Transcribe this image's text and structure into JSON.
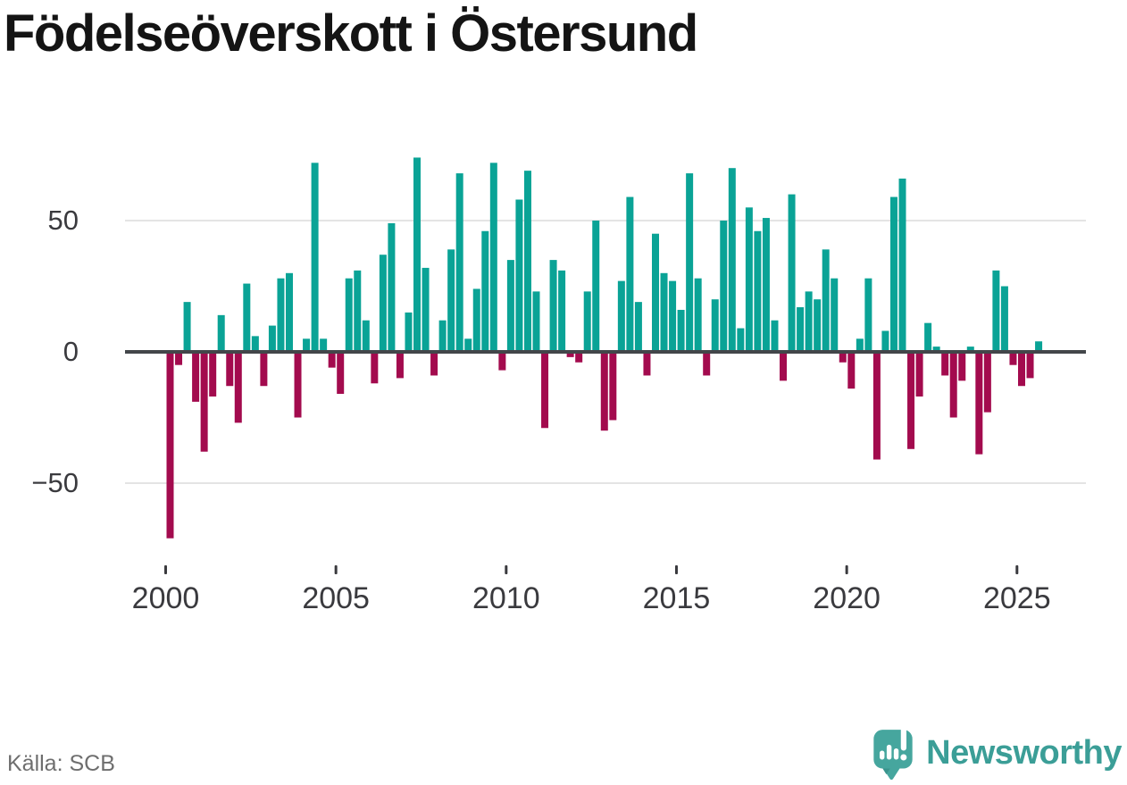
{
  "title": "Födelseöverskott i Östersund",
  "source": "Källa: SCB",
  "brand": {
    "name": "Newsworthy",
    "icon": "newsworthy-speech-bubble-chart-icon"
  },
  "chart_data": {
    "type": "bar",
    "title": "Födelseöverskott i Östersund",
    "xlabel": "",
    "ylabel": "",
    "frequency": "quarterly",
    "start_quarter": "2000Q1",
    "end_quarter": "2025Q3",
    "ylim": [
      -80,
      80
    ],
    "grid": "horizontal",
    "legend": "none",
    "yticks": [
      {
        "value": 50,
        "label": "50"
      },
      {
        "value": 0,
        "label": "0"
      },
      {
        "value": -50,
        "label": "−50"
      }
    ],
    "xticks": [
      {
        "year": 2000,
        "label": "2000"
      },
      {
        "year": 2005,
        "label": "2005"
      },
      {
        "year": 2010,
        "label": "2010"
      },
      {
        "year": 2015,
        "label": "2015"
      },
      {
        "year": 2020,
        "label": "2020"
      },
      {
        "year": 2025,
        "label": "2025"
      }
    ],
    "colors": {
      "positive": "#0aa396",
      "negative": "#a30b4e",
      "axis": "#43464a",
      "gridline": "#e4e4e4",
      "tick": "#3a3a3e"
    },
    "by_year": {
      "2000": [
        -71,
        -5,
        19,
        -19
      ],
      "2001": [
        -38,
        -17,
        14,
        -13
      ],
      "2002": [
        -27,
        26,
        6,
        -13
      ],
      "2003": [
        10,
        28,
        30,
        -25
      ],
      "2004": [
        5,
        72,
        5,
        -6
      ],
      "2005": [
        -16,
        28,
        31,
        12
      ],
      "2006": [
        -12,
        37,
        49,
        -10
      ],
      "2007": [
        15,
        74,
        32,
        -9
      ],
      "2008": [
        12,
        39,
        68,
        5
      ],
      "2009": [
        24,
        46,
        72,
        -7
      ],
      "2010": [
        35,
        58,
        69,
        23
      ],
      "2011": [
        -29,
        35,
        31,
        -2
      ],
      "2012": [
        -4,
        23,
        50,
        -30
      ],
      "2013": [
        -26,
        27,
        59,
        19
      ],
      "2014": [
        -9,
        45,
        30,
        27
      ],
      "2015": [
        16,
        68,
        28,
        -9
      ],
      "2016": [
        20,
        50,
        70,
        9
      ],
      "2017": [
        55,
        46,
        51,
        12
      ],
      "2018": [
        -11,
        60,
        17,
        23
      ],
      "2019": [
        20,
        39,
        28,
        -4
      ],
      "2020": [
        -14,
        5,
        28,
        -41
      ],
      "2021": [
        8,
        59,
        66,
        -37
      ],
      "2022": [
        -17,
        11,
        2,
        -9
      ],
      "2023": [
        -25,
        -11,
        2,
        -39
      ],
      "2024": [
        -23,
        31,
        25,
        -5
      ],
      "2025": [
        -13,
        -10,
        4
      ]
    }
  }
}
